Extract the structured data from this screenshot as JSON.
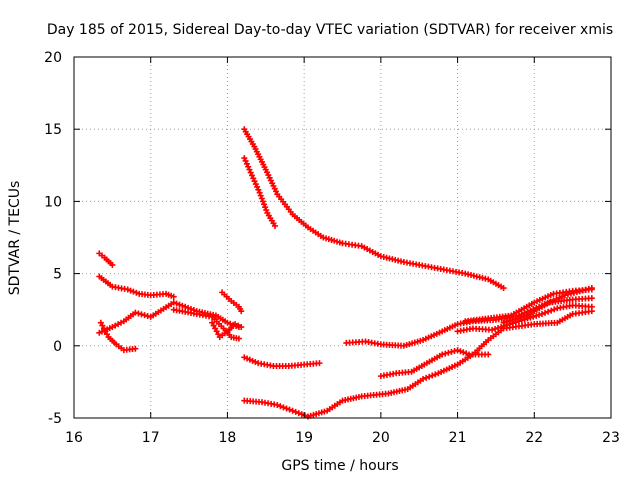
{
  "chart_data": {
    "type": "scatter",
    "title": "Day 185 of 2015, Sidereal Day-to-day VTEC variation (SDTVAR) for receiver xmis",
    "xlabel": "GPS time / hours",
    "ylabel": "SDTVAR / TECUs",
    "xlim": [
      16,
      23
    ],
    "ylim": [
      -5,
      20
    ],
    "xticks": [
      "16",
      "17",
      "18",
      "19",
      "20",
      "21",
      "22",
      "23"
    ],
    "yticks": [
      "-5",
      "0",
      "5",
      "10",
      "15",
      "20"
    ],
    "grid": true,
    "marker": "+",
    "color": "#ff0000",
    "series": [
      {
        "name": "s1",
        "x": [
          16.33,
          16.4,
          16.5
        ],
        "y": [
          6.4,
          6.1,
          5.6
        ]
      },
      {
        "name": "s2",
        "x": [
          16.33,
          16.5,
          16.7,
          16.85,
          17.0,
          17.2,
          17.3
        ],
        "y": [
          4.8,
          4.1,
          3.9,
          3.6,
          3.5,
          3.6,
          3.4
        ]
      },
      {
        "name": "s3",
        "x": [
          16.33,
          16.5,
          16.65,
          16.8,
          17.0,
          17.3,
          17.6,
          17.85,
          18.0,
          18.15
        ],
        "y": [
          0.9,
          1.3,
          1.7,
          2.3,
          2.0,
          3.0,
          2.4,
          2.1,
          1.6,
          1.3
        ]
      },
      {
        "name": "s4",
        "x": [
          16.35,
          16.45,
          16.55,
          16.65,
          16.8
        ],
        "y": [
          1.6,
          0.6,
          0.1,
          -0.3,
          -0.2
        ]
      },
      {
        "name": "s5",
        "x": [
          17.3,
          17.6,
          17.8,
          17.95,
          18.05,
          18.15
        ],
        "y": [
          2.5,
          2.2,
          2.0,
          1.2,
          0.6,
          0.5
        ]
      },
      {
        "name": "s6",
        "x": [
          17.8,
          17.9,
          18.0,
          18.1,
          18.18
        ],
        "y": [
          1.6,
          0.6,
          1.0,
          1.5,
          1.3
        ]
      },
      {
        "name": "s7",
        "x": [
          17.93,
          18.05,
          18.15,
          18.18
        ],
        "y": [
          3.7,
          3.1,
          2.7,
          2.4
        ]
      },
      {
        "name": "s8",
        "x": [
          18.22,
          18.35,
          18.5,
          18.65,
          18.85,
          19.05,
          19.25,
          19.5,
          19.75,
          20.0,
          20.3,
          20.7,
          21.1,
          21.4,
          21.6
        ],
        "y": [
          15.0,
          13.8,
          12.2,
          10.5,
          9.1,
          8.2,
          7.5,
          7.1,
          6.9,
          6.2,
          5.8,
          5.4,
          5.0,
          4.6,
          4.0
        ]
      },
      {
        "name": "s9",
        "x": [
          18.22,
          18.32,
          18.42,
          18.52,
          18.62
        ],
        "y": [
          13.0,
          11.8,
          10.6,
          9.2,
          8.3
        ]
      },
      {
        "name": "s10",
        "x": [
          18.22,
          18.4,
          18.6,
          18.8,
          19.0,
          19.2
        ],
        "y": [
          -0.8,
          -1.2,
          -1.4,
          -1.4,
          -1.3,
          -1.2
        ]
      },
      {
        "name": "s11",
        "x": [
          18.22,
          18.45,
          18.65,
          18.85,
          19.05,
          19.3,
          19.5,
          19.75,
          20.1,
          20.35,
          20.55,
          20.75,
          21.0,
          21.2,
          21.4,
          21.6,
          22.0,
          22.3,
          22.5,
          22.75
        ],
        "y": [
          -3.8,
          -3.9,
          -4.1,
          -4.5,
          -4.9,
          -4.5,
          -3.8,
          -3.5,
          -3.3,
          -3.0,
          -2.3,
          -1.9,
          -1.3,
          -0.6,
          0.4,
          1.2,
          1.5,
          1.6,
          2.2,
          2.4
        ]
      },
      {
        "name": "s12",
        "x": [
          19.55,
          19.8,
          20.0,
          20.3,
          20.55,
          20.8,
          21.0,
          21.2,
          21.5,
          21.8,
          22.1,
          22.4,
          22.75
        ],
        "y": [
          0.2,
          0.3,
          0.1,
          0.0,
          0.4,
          1.0,
          1.5,
          1.7,
          1.8,
          2.1,
          2.8,
          3.5,
          4.0
        ]
      },
      {
        "name": "s13",
        "x": [
          20.0,
          20.2,
          20.4,
          20.6,
          20.8,
          21.0,
          21.15,
          21.4
        ],
        "y": [
          -2.1,
          -1.9,
          -1.8,
          -1.2,
          -0.6,
          -0.3,
          -0.6,
          -0.6
        ]
      },
      {
        "name": "s14",
        "x": [
          21.0,
          21.2,
          21.45,
          21.8,
          22.1,
          22.3,
          22.5,
          22.75
        ],
        "y": [
          1.0,
          1.2,
          1.1,
          1.7,
          2.2,
          2.6,
          2.8,
          2.7
        ]
      },
      {
        "name": "s15",
        "x": [
          21.1,
          21.4,
          21.7,
          22.0,
          22.25,
          22.5,
          22.75
        ],
        "y": [
          1.7,
          1.9,
          2.1,
          3.0,
          3.6,
          3.8,
          3.9
        ]
      },
      {
        "name": "s16",
        "x": [
          21.6,
          21.9,
          22.2,
          22.5,
          22.75
        ],
        "y": [
          1.6,
          2.1,
          3.0,
          3.2,
          3.3
        ]
      }
    ]
  }
}
